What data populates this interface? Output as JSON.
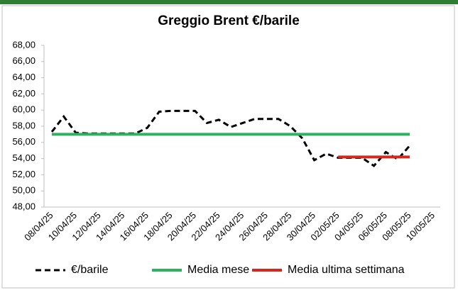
{
  "chart_data": {
    "type": "line",
    "title": "Greggio Brent €/barile",
    "categories": [
      "08/04/25",
      null,
      "10/04/25",
      null,
      "12/04/25",
      null,
      "14/04/25",
      null,
      "16/04/25",
      null,
      "18/04/25",
      null,
      "20/04/25",
      null,
      "22/04/25",
      null,
      "24/04/25",
      null,
      "26/04/25",
      null,
      "28/04/25",
      null,
      "30/04/25",
      null,
      "02/05/25",
      null,
      "04/05/25",
      null,
      "06/05/25",
      null,
      "08/05/25",
      null,
      "10/05/25"
    ],
    "series": [
      {
        "name": "€/barile",
        "color": "#000000",
        "dashed": true,
        "values": [
          57.3,
          59.2,
          57.2,
          57.1,
          57.1,
          57.1,
          57.1,
          57.1,
          57.8,
          59.8,
          59.9,
          59.9,
          59.9,
          58.4,
          58.8,
          57.9,
          58.4,
          58.9,
          58.9,
          58.9,
          58.0,
          56.5,
          53.8,
          54.6,
          54.1,
          54.1,
          54.1,
          53.1,
          54.8,
          53.9,
          55.6,
          null,
          null
        ]
      },
      {
        "name": "Media mese",
        "color": "#2db35d",
        "dashed": false,
        "values": [
          57.0,
          57.0,
          57.0,
          57.0,
          57.0,
          57.0,
          57.0,
          57.0,
          57.0,
          57.0,
          57.0,
          57.0,
          57.0,
          57.0,
          57.0,
          57.0,
          57.0,
          57.0,
          57.0,
          57.0,
          57.0,
          57.0,
          57.0,
          57.0,
          57.0,
          57.0,
          57.0,
          57.0,
          57.0,
          57.0,
          57.0,
          null,
          null
        ]
      },
      {
        "name": "Media ultima settimana",
        "color": "#d9261c",
        "dashed": false,
        "values": [
          null,
          null,
          null,
          null,
          null,
          null,
          null,
          null,
          null,
          null,
          null,
          null,
          null,
          null,
          null,
          null,
          null,
          null,
          null,
          null,
          null,
          null,
          null,
          null,
          54.2,
          54.2,
          54.2,
          54.2,
          54.2,
          54.2,
          54.2,
          null,
          null
        ]
      }
    ],
    "ylim": [
      48,
      68
    ],
    "yticks": [
      {
        "value": 48,
        "label": "48,00"
      },
      {
        "value": 50,
        "label": "50,00"
      },
      {
        "value": 52,
        "label": "52,00"
      },
      {
        "value": 54,
        "label": "54,00"
      },
      {
        "value": 56,
        "label": "56,00"
      },
      {
        "value": 58,
        "label": "58,00"
      },
      {
        "value": 60,
        "label": "60,00"
      },
      {
        "value": 62,
        "label": "62,00"
      },
      {
        "value": 64,
        "label": "64,00"
      },
      {
        "value": 66,
        "label": "66,00"
      },
      {
        "value": 68,
        "label": "68,00"
      }
    ],
    "grid": false,
    "legend": "bottom"
  }
}
